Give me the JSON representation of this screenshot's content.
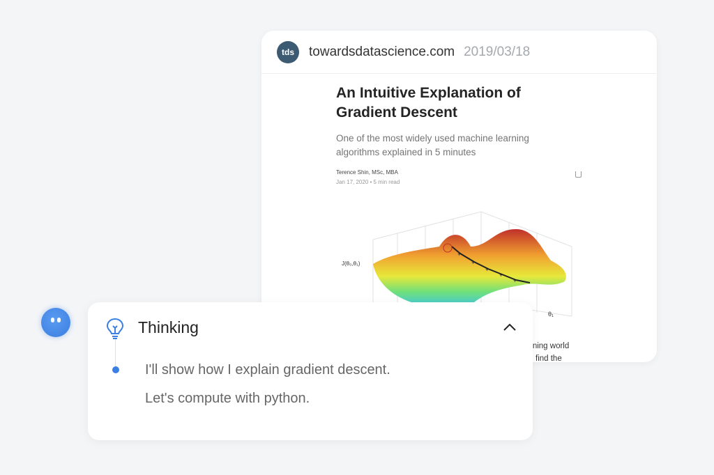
{
  "source_card": {
    "logo_text": "tds",
    "site": "towardsdatascience.com",
    "date": "2019/03/18",
    "article": {
      "title": "An Intuitive Explanation of Gradient Descent",
      "subtitle": "One of the most widely used machine learning algorithms explained in 5 minutes",
      "author": "Terence Shin, MSc, MBA",
      "meta": "Jan 17, 2020 • 5 min read",
      "figure_ylabel": "J(θ₀,θ₁)",
      "figure_xlabel": "θ₁",
      "body_fragment_1": "rning world",
      "body_fragment_2": "find the"
    }
  },
  "thinking": {
    "title": "Thinking",
    "lines": [
      "I'll show how I explain gradient descent.",
      "Let's compute with python."
    ],
    "accent": "#3b7fe3"
  }
}
